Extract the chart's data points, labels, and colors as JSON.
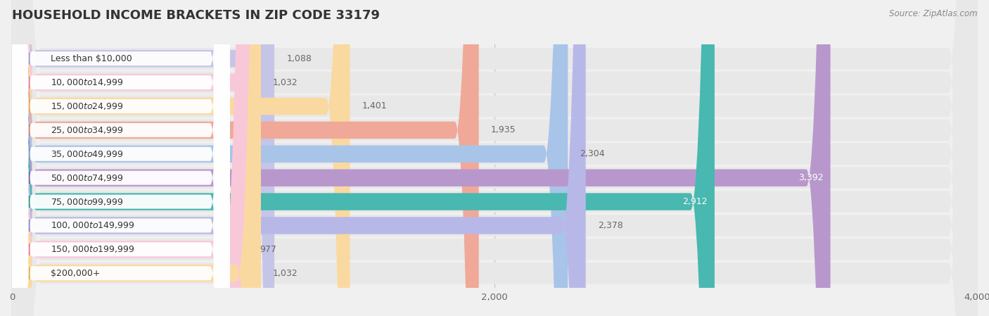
{
  "title": "HOUSEHOLD INCOME BRACKETS IN ZIP CODE 33179",
  "source": "Source: ZipAtlas.com",
  "categories": [
    "Less than $10,000",
    "$10,000 to $14,999",
    "$15,000 to $24,999",
    "$25,000 to $34,999",
    "$35,000 to $49,999",
    "$50,000 to $74,999",
    "$75,000 to $99,999",
    "$100,000 to $149,999",
    "$150,000 to $199,999",
    "$200,000+"
  ],
  "values": [
    1088,
    1032,
    1401,
    1935,
    2304,
    3392,
    2912,
    2378,
    977,
    1032
  ],
  "bar_colors": [
    "#c5c5e8",
    "#f8c8d8",
    "#fad9a0",
    "#f0a898",
    "#a8c4e8",
    "#b898cc",
    "#48b8b0",
    "#b8b8e8",
    "#f8c8d8",
    "#fad9a0"
  ],
  "dot_colors": [
    "#9898cc",
    "#e87898",
    "#e8a840",
    "#d87868",
    "#6898c8",
    "#8858a8",
    "#289888",
    "#8888c8",
    "#e87898",
    "#e8a840"
  ],
  "label_colors_inside": [
    false,
    false,
    false,
    false,
    false,
    true,
    true,
    false,
    false,
    false
  ],
  "value_colors": [
    "#666666",
    "#666666",
    "#666666",
    "#666666",
    "#666666",
    "#ffffff",
    "#ffffff",
    "#666666",
    "#666666",
    "#666666"
  ],
  "xlim": [
    0,
    4000
  ],
  "xticks": [
    0,
    2000,
    4000
  ],
  "bg_color": "#f0f0f0",
  "row_bg_color": "#e8e8e8",
  "row_white_color": "#ffffff"
}
